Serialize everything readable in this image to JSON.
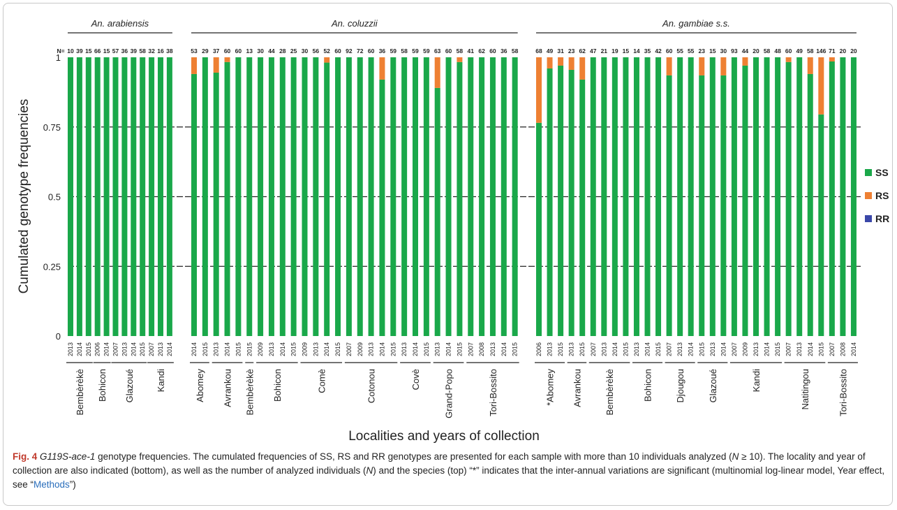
{
  "chart_data": {
    "type": "bar",
    "stacked": true,
    "ylabel": "Cumulated genotype  frequencies",
    "xlabel": "Localities and years of collection",
    "ylim": [
      0,
      1
    ],
    "yticks": [
      "0",
      "0.25",
      "0.5",
      "0.75",
      "1"
    ],
    "n_prefix": "N=",
    "legend": [
      {
        "name": "SS",
        "color": "#1aa84a"
      },
      {
        "name": "RS",
        "color": "#ee8033"
      },
      {
        "name": "RR",
        "color": "#3a47a8"
      }
    ],
    "species": [
      {
        "name": "An. arabiensis",
        "bars": [
          {
            "year": "2013",
            "n": 10,
            "rs": 0
          },
          {
            "year": "2014",
            "n": 39,
            "rs": 0
          },
          {
            "year": "2015",
            "n": 15,
            "rs": 0
          },
          {
            "year": "2006",
            "n": 66,
            "rs": 0
          },
          {
            "year": "2014",
            "n": 15,
            "rs": 0
          },
          {
            "year": "2007",
            "n": 57,
            "rs": 0
          },
          {
            "year": "2013",
            "n": 36,
            "rs": 0
          },
          {
            "year": "2014",
            "n": 39,
            "rs": 0
          },
          {
            "year": "2015",
            "n": 58,
            "rs": 0
          },
          {
            "year": "2007",
            "n": 32,
            "rs": 0
          },
          {
            "year": "2013",
            "n": 16,
            "rs": 0
          },
          {
            "year": "2014",
            "n": 38,
            "rs": 0
          }
        ],
        "localities": [
          {
            "name": "Bembèrèkè",
            "from": 0,
            "to": 2
          },
          {
            "name": "Bohicon",
            "from": 3,
            "to": 4
          },
          {
            "name": "Glazoué",
            "from": 5,
            "to": 8
          },
          {
            "name": "Kandi",
            "from": 9,
            "to": 11
          }
        ]
      },
      {
        "name": "An. coluzzii",
        "bars": [
          {
            "year": "2014",
            "n": 53,
            "rs": 0.06
          },
          {
            "year": "2015",
            "n": 29,
            "rs": 0
          },
          {
            "year": "2013",
            "n": 37,
            "rs": 0.055
          },
          {
            "year": "2014",
            "n": 60,
            "rs": 0.017
          },
          {
            "year": "2015",
            "n": 60,
            "rs": 0
          },
          {
            "year": "2015",
            "n": 13,
            "rs": 0
          },
          {
            "year": "2009",
            "n": 30,
            "rs": 0
          },
          {
            "year": "2013",
            "n": 44,
            "rs": 0
          },
          {
            "year": "2014",
            "n": 28,
            "rs": 0
          },
          {
            "year": "2015",
            "n": 25,
            "rs": 0
          },
          {
            "year": "2009",
            "n": 30,
            "rs": 0
          },
          {
            "year": "2013",
            "n": 56,
            "rs": 0
          },
          {
            "year": "2014",
            "n": 52,
            "rs": 0.019
          },
          {
            "year": "2015",
            "n": 60,
            "rs": 0
          },
          {
            "year": "2007",
            "n": 92,
            "rs": 0
          },
          {
            "year": "2009",
            "n": 72,
            "rs": 0
          },
          {
            "year": "2013",
            "n": 60,
            "rs": 0
          },
          {
            "year": "2014",
            "n": 36,
            "rs": 0.08
          },
          {
            "year": "2015",
            "n": 59,
            "rs": 0
          },
          {
            "year": "2013",
            "n": 58,
            "rs": 0
          },
          {
            "year": "2014",
            "n": 59,
            "rs": 0
          },
          {
            "year": "2015",
            "n": 59,
            "rs": 0
          },
          {
            "year": "2013",
            "n": 63,
            "rs": 0.11
          },
          {
            "year": "2014",
            "n": 60,
            "rs": 0
          },
          {
            "year": "2015",
            "n": 58,
            "rs": 0.017
          },
          {
            "year": "2007",
            "n": 41,
            "rs": 0
          },
          {
            "year": "2008",
            "n": 62,
            "rs": 0
          },
          {
            "year": "2013",
            "n": 60,
            "rs": 0
          },
          {
            "year": "2014",
            "n": 36,
            "rs": 0
          },
          {
            "year": "2015",
            "n": 58,
            "rs": 0
          }
        ],
        "localities": [
          {
            "name": "Abomey",
            "from": 0,
            "to": 1
          },
          {
            "name": "Avrankou",
            "from": 2,
            "to": 4
          },
          {
            "name": "Bembèrèkè",
            "from": 5,
            "to": 5
          },
          {
            "name": "Bohicon",
            "from": 6,
            "to": 9
          },
          {
            "name": "Comè",
            "from": 10,
            "to": 13
          },
          {
            "name": "Cotonou",
            "from": 14,
            "to": 18
          },
          {
            "name": "Covè",
            "from": 19,
            "to": 21
          },
          {
            "name": "Grand-Popo",
            "from": 22,
            "to": 24
          },
          {
            "name": "Tori-Bossito",
            "from": 25,
            "to": 29
          }
        ]
      },
      {
        "name": "An. gambiae s.s.",
        "bars": [
          {
            "year": "2006",
            "n": 68,
            "rs": 0.235
          },
          {
            "year": "2013",
            "n": 49,
            "rs": 0.04
          },
          {
            "year": "2015",
            "n": 31,
            "rs": 0.03
          },
          {
            "year": "2013",
            "n": 23,
            "rs": 0.045
          },
          {
            "year": "2015",
            "n": 62,
            "rs": 0.08
          },
          {
            "year": "2007",
            "n": 47,
            "rs": 0
          },
          {
            "year": "2013",
            "n": 21,
            "rs": 0
          },
          {
            "year": "2014",
            "n": 19,
            "rs": 0
          },
          {
            "year": "2015",
            "n": 15,
            "rs": 0
          },
          {
            "year": "2013",
            "n": 14,
            "rs": 0
          },
          {
            "year": "2014",
            "n": 35,
            "rs": 0
          },
          {
            "year": "2015",
            "n": 42,
            "rs": 0
          },
          {
            "year": "2007",
            "n": 60,
            "rs": 0.065
          },
          {
            "year": "2013",
            "n": 55,
            "rs": 0
          },
          {
            "year": "2014",
            "n": 55,
            "rs": 0
          },
          {
            "year": "2015",
            "n": 23,
            "rs": 0.065
          },
          {
            "year": "2013",
            "n": 15,
            "rs": 0
          },
          {
            "year": "2014",
            "n": 30,
            "rs": 0.065
          },
          {
            "year": "2007",
            "n": 93,
            "rs": 0
          },
          {
            "year": "2009",
            "n": 44,
            "rs": 0.03
          },
          {
            "year": "2013",
            "n": 20,
            "rs": 0
          },
          {
            "year": "2014",
            "n": 58,
            "rs": 0
          },
          {
            "year": "2015",
            "n": 48,
            "rs": 0
          },
          {
            "year": "2007",
            "n": 60,
            "rs": 0.017
          },
          {
            "year": "2013",
            "n": 49,
            "rs": 0
          },
          {
            "year": "2014",
            "n": 58,
            "rs": 0.06
          },
          {
            "year": "2015",
            "n": 146,
            "rs": 0.205
          },
          {
            "year": "2007",
            "n": 71,
            "rs": 0.015
          },
          {
            "year": "2008",
            "n": 20,
            "rs": 0
          },
          {
            "year": "2014",
            "n": 20,
            "rs": 0
          }
        ],
        "localities": [
          {
            "name": "*Abomey",
            "from": 0,
            "to": 2
          },
          {
            "name": "Avrankou",
            "from": 3,
            "to": 4
          },
          {
            "name": "Bembèrèkè",
            "from": 5,
            "to": 8
          },
          {
            "name": "Bohicon",
            "from": 9,
            "to": 11
          },
          {
            "name": "Djougou",
            "from": 12,
            "to": 14
          },
          {
            "name": "Glazoué",
            "from": 15,
            "to": 17
          },
          {
            "name": "Kandi",
            "from": 18,
            "to": 22
          },
          {
            "name": "Natitingou",
            "from": 23,
            "to": 26
          },
          {
            "name": "Tori-Bossito",
            "from": 27,
            "to": 29
          }
        ]
      }
    ]
  },
  "caption": {
    "label": "Fig. 4",
    "gene": "G119S-ace-1",
    "text_1": " genotype frequencies. The cumulated frequencies of SS, RS and RR genotypes are presented for each sample with more than 10 individuals analyzed (",
    "n_symbol": "N",
    "text_2": " ≥ 10). The locality and year of collection are also indicated (bottom), as well as the number of analyzed individuals (",
    "n_symbol_2": "N",
    "text_3": ") and the species (top) “*” indicates that the inter-annual variations are significant (multinomial log-linear model, Year effect, see “",
    "link": "Methods",
    "text_4": "”)"
  }
}
